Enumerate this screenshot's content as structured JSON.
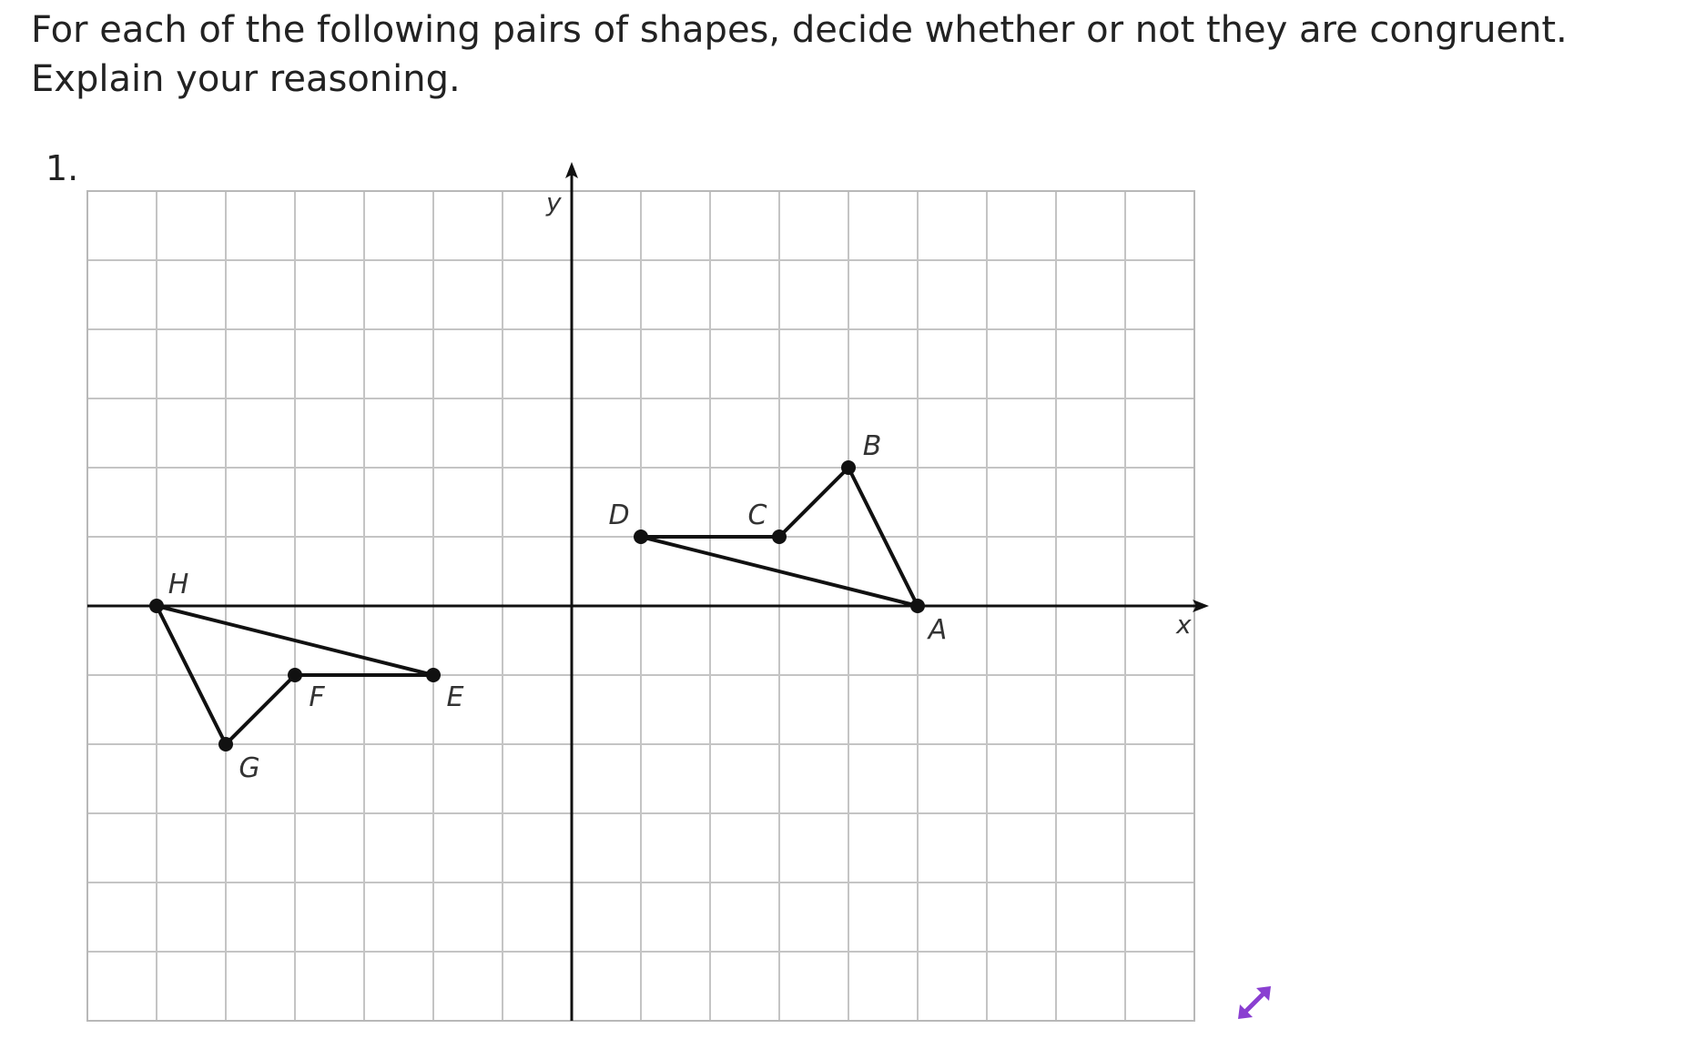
{
  "question": {
    "prompt": "For each of the following pairs of shapes, decide whether or not they are congruent. Explain your reasoning.",
    "item_number": "1."
  },
  "figure": {
    "axis_labels": {
      "x": "x",
      "y": "y"
    },
    "grid": {
      "x_min": -7,
      "x_max": 9,
      "y_min": -6,
      "y_max": 6
    },
    "points": [
      {
        "name": "A",
        "x": 5,
        "y": 0
      },
      {
        "name": "B",
        "x": 4,
        "y": 2
      },
      {
        "name": "C",
        "x": 3,
        "y": 1
      },
      {
        "name": "D",
        "x": 1,
        "y": 1
      },
      {
        "name": "E",
        "x": -2,
        "y": -1
      },
      {
        "name": "F",
        "x": -4,
        "y": -1
      },
      {
        "name": "G",
        "x": -5,
        "y": -2
      },
      {
        "name": "H",
        "x": -6,
        "y": 0
      }
    ],
    "shapes": [
      [
        "A",
        "B",
        "C",
        "D"
      ],
      [
        "E",
        "F",
        "G",
        "H"
      ]
    ]
  },
  "controls": {
    "expand_icon": "expand-arrows-icon",
    "icon_color": "#8a3fd1"
  }
}
